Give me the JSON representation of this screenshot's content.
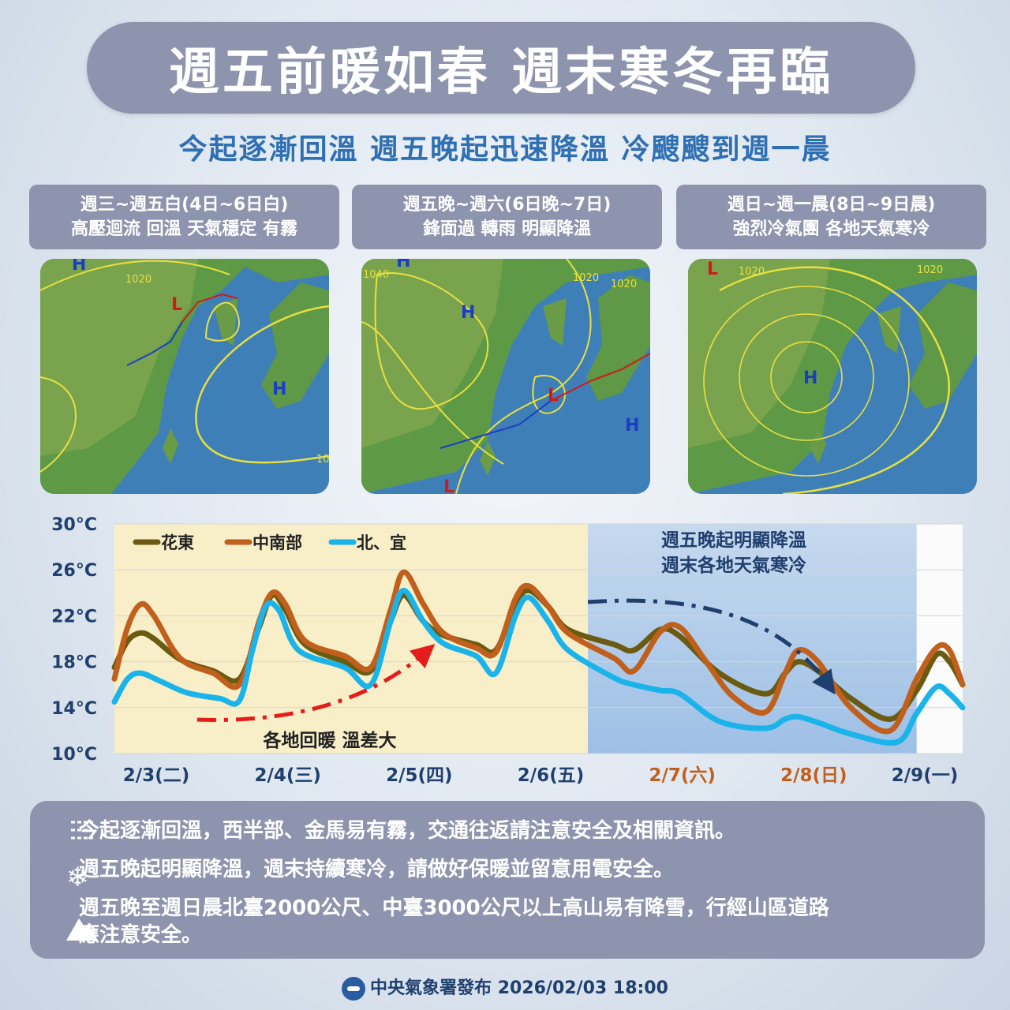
{
  "title": "週五前暖如春  週末寒冬再臨",
  "subtitle": "今起逐漸回溫 週五晚起迅速降溫 冷颼颼到週一晨",
  "panels": [
    {
      "line1": "週三~週五白(4日~6日白)",
      "line2": "高壓迴流 回溫 天氣穩定 有霧"
    },
    {
      "line1": "週五晚~週六(6日晚~7日)",
      "line2": "鋒面過 轉雨 明顯降溫"
    },
    {
      "line1": "週日~週一晨(8日~9日晨)",
      "line2": "強烈冷氣團 各地天氣寒冷"
    }
  ],
  "maps": [
    {
      "isobars": [
        "1020",
        "10"
      ],
      "highs": [
        "H",
        "H"
      ],
      "lows": [
        "L"
      ]
    },
    {
      "isobars": [
        "1040",
        "1020",
        "1020"
      ],
      "highs": [
        "H",
        "H",
        "H"
      ],
      "lows": [
        "L",
        "L"
      ]
    },
    {
      "isobars": [
        "1020",
        "1020"
      ],
      "highs": [
        "H"
      ],
      "lows": [
        "L"
      ]
    }
  ],
  "chart_data": {
    "type": "line",
    "ylim": [
      10,
      30
    ],
    "yticks": [
      "30°C",
      "26°C",
      "22°C",
      "18°C",
      "14°C",
      "10°C"
    ],
    "categories": [
      "2/3(二)",
      "2/4(三)",
      "2/5(四)",
      "2/6(五)",
      "2/7(六)",
      "2/8(日)",
      "2/9(一)"
    ],
    "category_colors": [
      "#1f3f6e",
      "#1f3f6e",
      "#1f3f6e",
      "#1f3f6e",
      "#c0601c",
      "#c0601c",
      "#1f3f6e"
    ],
    "x_range": [
      0,
      6.45
    ],
    "warm_span": [
      0,
      3.6
    ],
    "cold_span": [
      3.6,
      6.1
    ],
    "series": [
      {
        "name": "花東",
        "color": "#6b5a12",
        "points": [
          [
            0,
            17.5
          ],
          [
            0.1,
            19.8
          ],
          [
            0.2,
            20.5
          ],
          [
            0.3,
            20
          ],
          [
            0.5,
            18.2
          ],
          [
            0.75,
            17.2
          ],
          [
            0.95,
            16.5
          ],
          [
            1.1,
            21
          ],
          [
            1.2,
            23.8
          ],
          [
            1.3,
            22.5
          ],
          [
            1.45,
            19.5
          ],
          [
            1.75,
            18
          ],
          [
            1.95,
            17.2
          ],
          [
            2.1,
            21.5
          ],
          [
            2.2,
            23.8
          ],
          [
            2.35,
            21.5
          ],
          [
            2.5,
            20.3
          ],
          [
            2.75,
            19.5
          ],
          [
            2.9,
            19
          ],
          [
            3.05,
            23
          ],
          [
            3.15,
            24.2
          ],
          [
            3.3,
            22.8
          ],
          [
            3.45,
            20.8
          ],
          [
            3.8,
            19.5
          ],
          [
            3.95,
            19
          ],
          [
            4.15,
            20.8
          ],
          [
            4.3,
            20.2
          ],
          [
            4.6,
            17
          ],
          [
            4.95,
            15.2
          ],
          [
            5.1,
            17
          ],
          [
            5.2,
            18
          ],
          [
            5.35,
            17.2
          ],
          [
            5.6,
            14.8
          ],
          [
            5.9,
            13
          ],
          [
            6.1,
            15.5
          ],
          [
            6.25,
            18.6
          ],
          [
            6.35,
            18
          ],
          [
            6.45,
            16
          ]
        ]
      },
      {
        "name": "中南部",
        "color": "#c0601c",
        "points": [
          [
            0,
            16.5
          ],
          [
            0.1,
            21
          ],
          [
            0.2,
            23
          ],
          [
            0.3,
            22
          ],
          [
            0.5,
            18.3
          ],
          [
            0.75,
            17
          ],
          [
            0.95,
            16
          ],
          [
            1.1,
            21.5
          ],
          [
            1.2,
            24
          ],
          [
            1.3,
            23
          ],
          [
            1.45,
            19.8
          ],
          [
            1.75,
            18.5
          ],
          [
            1.95,
            17.5
          ],
          [
            2.1,
            22.5
          ],
          [
            2.2,
            25.8
          ],
          [
            2.35,
            23
          ],
          [
            2.5,
            20.5
          ],
          [
            2.75,
            19.2
          ],
          [
            2.9,
            18.8
          ],
          [
            3.05,
            23.5
          ],
          [
            3.15,
            24.6
          ],
          [
            3.3,
            22.8
          ],
          [
            3.45,
            20.5
          ],
          [
            3.8,
            18.3
          ],
          [
            3.95,
            17.2
          ],
          [
            4.15,
            20.6
          ],
          [
            4.3,
            21
          ],
          [
            4.5,
            18
          ],
          [
            4.7,
            15
          ],
          [
            4.95,
            13.6
          ],
          [
            5.1,
            17
          ],
          [
            5.2,
            19
          ],
          [
            5.35,
            18
          ],
          [
            5.6,
            14
          ],
          [
            5.9,
            12
          ],
          [
            6.1,
            16.5
          ],
          [
            6.25,
            19.2
          ],
          [
            6.35,
            19
          ],
          [
            6.45,
            16
          ]
        ]
      },
      {
        "name": "北、宜",
        "color": "#1ab3ea",
        "points": [
          [
            0,
            14.5
          ],
          [
            0.1,
            16.5
          ],
          [
            0.2,
            17
          ],
          [
            0.35,
            16.3
          ],
          [
            0.55,
            15.3
          ],
          [
            0.8,
            14.8
          ],
          [
            0.95,
            14.6
          ],
          [
            1.05,
            19
          ],
          [
            1.15,
            22.8
          ],
          [
            1.25,
            22.5
          ],
          [
            1.4,
            19
          ],
          [
            1.75,
            17.5
          ],
          [
            1.95,
            16
          ],
          [
            2.1,
            21.5
          ],
          [
            2.2,
            24.2
          ],
          [
            2.35,
            21.5
          ],
          [
            2.5,
            19.6
          ],
          [
            2.75,
            18.5
          ],
          [
            2.9,
            17
          ],
          [
            3.05,
            22
          ],
          [
            3.15,
            23.6
          ],
          [
            3.3,
            21.5
          ],
          [
            3.45,
            19
          ],
          [
            3.8,
            16.6
          ],
          [
            3.95,
            16
          ],
          [
            4.15,
            15.5
          ],
          [
            4.3,
            15.2
          ],
          [
            4.6,
            12.8
          ],
          [
            4.95,
            12.2
          ],
          [
            5.1,
            13
          ],
          [
            5.2,
            13.2
          ],
          [
            5.35,
            12.7
          ],
          [
            5.6,
            11.7
          ],
          [
            5.95,
            11
          ],
          [
            6.1,
            13.5
          ],
          [
            6.25,
            15.8
          ],
          [
            6.35,
            15.2
          ],
          [
            6.45,
            14
          ]
        ]
      }
    ],
    "annotations": {
      "cold_line1": "週五晚起明顯降溫",
      "cold_line2": "週末各地天氣寒冷",
      "warm_label": "各地回暖 溫差大"
    }
  },
  "notes": [
    {
      "icon": "fog-icon",
      "text": "今起逐漸回溫，西半部、金馬易有霧，交通往返請注意安全及相關資訊。"
    },
    {
      "icon": "snowflake-icon",
      "text": "週五晚起明顯降溫，週末持續寒冷，請做好保暖並留意用電安全。"
    },
    {
      "icon": "mountain-icon",
      "line1": "週五晚至週日晨北臺2000公尺、中臺3000公尺以上高山易有降雪，行經山區道路",
      "line2": "應注意安全。"
    }
  ],
  "footer": "中央氣象署發布 2026/02/03 18:00"
}
